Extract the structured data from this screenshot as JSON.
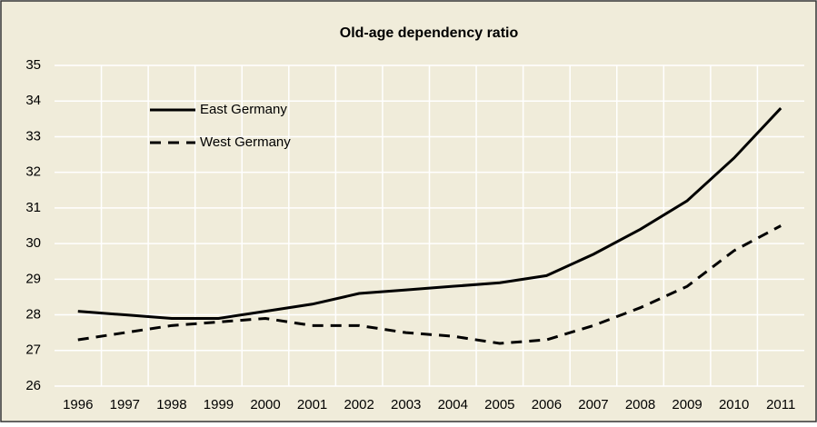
{
  "chart_data": {
    "type": "line",
    "title": "Old-age dependency ratio",
    "categories": [
      "1996",
      "1997",
      "1998",
      "1999",
      "2000",
      "2001",
      "2002",
      "2003",
      "2004",
      "2005",
      "2006",
      "2007",
      "2008",
      "2009",
      "2010",
      "2011"
    ],
    "series": [
      {
        "name": "East Germany",
        "color": "#000000",
        "line_style": "solid",
        "values": [
          28.1,
          28.0,
          27.9,
          27.9,
          28.1,
          28.3,
          28.6,
          28.7,
          28.8,
          28.9,
          29.1,
          29.7,
          30.4,
          31.2,
          32.4,
          33.8
        ]
      },
      {
        "name": "West Germany",
        "color": "#000000",
        "line_style": "dashed",
        "values": [
          27.3,
          27.5,
          27.7,
          27.8,
          27.9,
          27.7,
          27.7,
          27.5,
          27.4,
          27.2,
          27.3,
          27.7,
          28.2,
          28.8,
          29.8,
          30.5
        ]
      }
    ],
    "ylim": [
      26,
      35
    ],
    "yticks": [
      26,
      27,
      28,
      29,
      30,
      31,
      32,
      33,
      34,
      35
    ],
    "grid": true,
    "legend": "upper left",
    "background": "#f0ecda"
  }
}
